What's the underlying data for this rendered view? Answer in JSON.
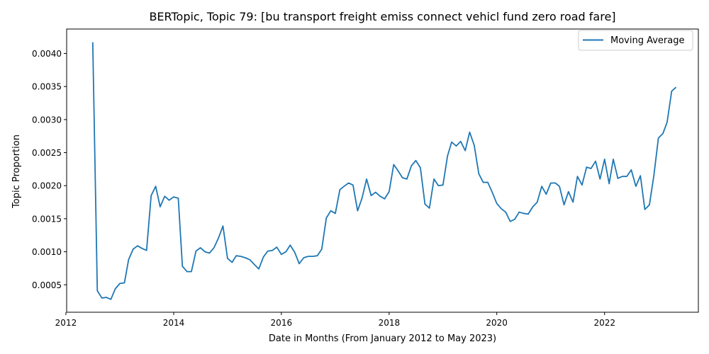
{
  "chart_data": {
    "type": "line",
    "title": "BERTopic, Topic 79: [bu transport freight emiss connect vehicl fund zero road fare]",
    "xlabel": "Date in Months (From January 2012 to May 2023)",
    "ylabel": "Topic Proportion",
    "xlim": [
      "2012-01-06",
      "2023-09-29"
    ],
    "ylim": [
      8.5e-05,
      0.00437
    ],
    "x_ticks": [
      {
        "value": "2012-01-01",
        "label": "2012"
      },
      {
        "value": "2014-01-01",
        "label": "2014"
      },
      {
        "value": "2016-01-01",
        "label": "2016"
      },
      {
        "value": "2018-01-01",
        "label": "2018"
      },
      {
        "value": "2020-01-01",
        "label": "2020"
      },
      {
        "value": "2022-01-01",
        "label": "2022"
      }
    ],
    "y_ticks": [
      {
        "value": 0.0005,
        "label": "0.0005"
      },
      {
        "value": 0.001,
        "label": "0.0010"
      },
      {
        "value": 0.0015,
        "label": "0.0015"
      },
      {
        "value": 0.002,
        "label": "0.0020"
      },
      {
        "value": 0.0025,
        "label": "0.0025"
      },
      {
        "value": 0.003,
        "label": "0.0030"
      },
      {
        "value": 0.0035,
        "label": "0.0035"
      },
      {
        "value": 0.004,
        "label": "0.0040"
      }
    ],
    "grid": false,
    "legend": {
      "position": "top-right"
    },
    "series": [
      {
        "name": "Moving Average",
        "color": "#1f77b4",
        "x": [
          "2012-07-01",
          "2012-08-01",
          "2012-09-01",
          "2012-10-01",
          "2012-11-01",
          "2012-12-01",
          "2013-01-01",
          "2013-02-01",
          "2013-03-01",
          "2013-04-01",
          "2013-05-01",
          "2013-06-01",
          "2013-07-01",
          "2013-08-01",
          "2013-09-01",
          "2013-10-01",
          "2013-11-01",
          "2013-12-01",
          "2014-01-01",
          "2014-02-01",
          "2014-03-01",
          "2014-04-01",
          "2014-05-01",
          "2014-06-01",
          "2014-07-01",
          "2014-08-01",
          "2014-09-01",
          "2014-10-01",
          "2014-11-01",
          "2014-12-01",
          "2015-01-01",
          "2015-02-01",
          "2015-03-01",
          "2015-04-01",
          "2015-05-01",
          "2015-06-01",
          "2015-07-01",
          "2015-08-01",
          "2015-09-01",
          "2015-10-01",
          "2015-11-01",
          "2015-12-01",
          "2016-01-01",
          "2016-02-01",
          "2016-03-01",
          "2016-04-01",
          "2016-05-01",
          "2016-06-01",
          "2016-07-01",
          "2016-08-01",
          "2016-09-01",
          "2016-10-01",
          "2016-11-01",
          "2016-12-01",
          "2017-01-01",
          "2017-02-01",
          "2017-03-01",
          "2017-04-01",
          "2017-05-01",
          "2017-06-01",
          "2017-07-01",
          "2017-08-01",
          "2017-09-01",
          "2017-10-01",
          "2017-11-01",
          "2017-12-01",
          "2018-01-01",
          "2018-02-01",
          "2018-03-01",
          "2018-04-01",
          "2018-05-01",
          "2018-06-01",
          "2018-07-01",
          "2018-08-01",
          "2018-09-01",
          "2018-10-01",
          "2018-11-01",
          "2018-12-01",
          "2019-01-01",
          "2019-02-01",
          "2019-03-01",
          "2019-04-01",
          "2019-05-01",
          "2019-06-01",
          "2019-07-01",
          "2019-08-01",
          "2019-09-01",
          "2019-10-01",
          "2019-11-01",
          "2019-12-01",
          "2020-01-01",
          "2020-02-01",
          "2020-03-01",
          "2020-04-01",
          "2020-05-01",
          "2020-06-01",
          "2020-07-01",
          "2020-08-01",
          "2020-09-01",
          "2020-10-01",
          "2020-11-01",
          "2020-12-01",
          "2021-01-01",
          "2021-02-01",
          "2021-03-01",
          "2021-04-01",
          "2021-05-01",
          "2021-06-01",
          "2021-07-01",
          "2021-08-01",
          "2021-09-01",
          "2021-10-01",
          "2021-11-01",
          "2021-12-01",
          "2022-01-01",
          "2022-02-01",
          "2022-03-01",
          "2022-04-01",
          "2022-05-01",
          "2022-06-01",
          "2022-07-01",
          "2022-08-01",
          "2022-09-01",
          "2022-10-01",
          "2022-11-01",
          "2022-12-01",
          "2023-01-01",
          "2023-02-01",
          "2023-03-01",
          "2023-04-01",
          "2023-05-01"
        ],
        "y": [
          0.00417,
          0.00041,
          0.0003,
          0.00031,
          0.00028,
          0.00044,
          0.00052,
          0.00053,
          0.00088,
          0.00104,
          0.00109,
          0.00105,
          0.00102,
          0.00185,
          0.00199,
          0.00168,
          0.00184,
          0.00178,
          0.00183,
          0.00181,
          0.00078,
          0.0007,
          0.0007,
          0.00101,
          0.00106,
          0.001,
          0.00098,
          0.00106,
          0.00121,
          0.00139,
          0.0009,
          0.00084,
          0.00094,
          0.00093,
          0.00091,
          0.00088,
          0.00081,
          0.00074,
          0.00092,
          0.00101,
          0.00102,
          0.00107,
          0.00096,
          0.001,
          0.0011,
          0.00099,
          0.00082,
          0.00091,
          0.00093,
          0.00093,
          0.00094,
          0.00104,
          0.00151,
          0.00162,
          0.00158,
          0.00194,
          0.00199,
          0.00204,
          0.00201,
          0.00162,
          0.00181,
          0.0021,
          0.00185,
          0.0019,
          0.00184,
          0.0018,
          0.00191,
          0.00232,
          0.00223,
          0.00212,
          0.0021,
          0.0023,
          0.00238,
          0.00227,
          0.00172,
          0.00166,
          0.0021,
          0.002,
          0.00201,
          0.00245,
          0.00266,
          0.0026,
          0.00267,
          0.00253,
          0.00281,
          0.00261,
          0.00218,
          0.00205,
          0.00205,
          0.0019,
          0.00173,
          0.00165,
          0.0016,
          0.00146,
          0.00149,
          0.0016,
          0.00158,
          0.00157,
          0.00168,
          0.00175,
          0.00199,
          0.00187,
          0.00204,
          0.00204,
          0.00199,
          0.00171,
          0.00191,
          0.00175,
          0.00214,
          0.00201,
          0.00228,
          0.00226,
          0.00237,
          0.0021,
          0.0024,
          0.00203,
          0.0024,
          0.00211,
          0.00214,
          0.00214,
          0.00224,
          0.00199,
          0.00215,
          0.00164,
          0.00171,
          0.00215,
          0.00272,
          0.00279,
          0.00296,
          0.00343,
          0.00349
        ]
      }
    ]
  }
}
